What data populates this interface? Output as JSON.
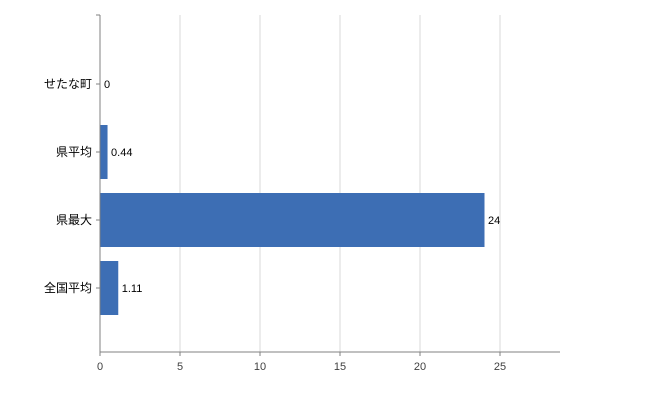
{
  "chart_data": {
    "type": "bar",
    "orientation": "horizontal",
    "title": "",
    "categories": [
      "せたな町",
      "県平均",
      "県最大",
      "全国平均"
    ],
    "values": [
      0,
      0.44,
      24,
      1.11
    ],
    "value_labels": [
      "0",
      "0.44",
      "24",
      "1.11"
    ],
    "x_ticks": [
      0,
      5,
      10,
      15,
      20,
      25
    ],
    "xlim": [
      0,
      28.75
    ],
    "grid": true,
    "legend": "none",
    "colors": {
      "bar": "#3d6eb4",
      "gridline": "#d9d9d9",
      "axis": "#808080",
      "tick_text": "#404040",
      "category_text": "#000000",
      "value_text": "#000000",
      "background": "#ffffff"
    }
  }
}
